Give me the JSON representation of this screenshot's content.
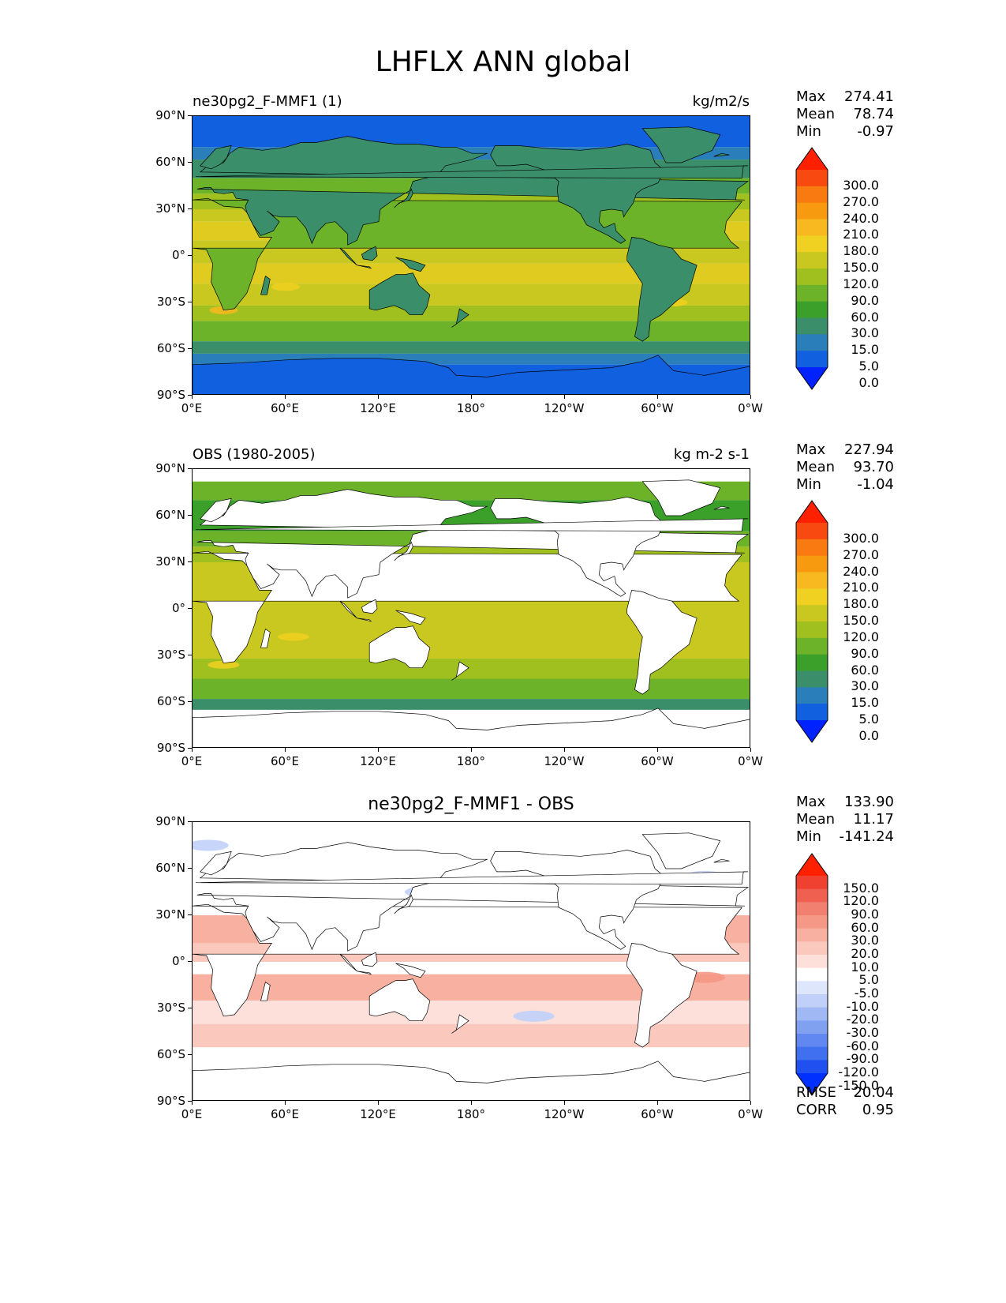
{
  "figure_title": "LHFLX ANN global",
  "panels": [
    {
      "title_left": "ne30pg2_F-MMF1 (1)",
      "title_right": "kg/m2/s",
      "title_center": "",
      "stats": {
        "max_label": "Max",
        "max": "274.41",
        "mean_label": "Mean",
        "mean": "78.74",
        "min_label": "Min",
        "min": "-0.97"
      },
      "colorbar_labels": [
        "300.0",
        "270.0",
        "240.0",
        "210.0",
        "180.0",
        "150.0",
        "120.0",
        "90.0",
        "60.0",
        "30.0",
        "15.0",
        "5.0",
        "0.0"
      ]
    },
    {
      "title_left": "OBS (1980-2005)",
      "title_right": "kg m-2 s-1",
      "title_center": "",
      "stats": {
        "max_label": "Max",
        "max": "227.94",
        "mean_label": "Mean",
        "mean": "93.70",
        "min_label": "Min",
        "min": "-1.04"
      },
      "colorbar_labels": [
        "300.0",
        "270.0",
        "240.0",
        "210.0",
        "180.0",
        "150.0",
        "120.0",
        "90.0",
        "60.0",
        "30.0",
        "15.0",
        "5.0",
        "0.0"
      ]
    },
    {
      "title_left": "",
      "title_right": "",
      "title_center": "ne30pg2_F-MMF1 - OBS",
      "stats": {
        "max_label": "Max",
        "max": "133.90",
        "mean_label": "Mean",
        "mean": "11.17",
        "min_label": "Min",
        "min": "-141.24"
      },
      "colorbar_labels": [
        "150.0",
        "120.0",
        "90.0",
        "60.0",
        "30.0",
        "20.0",
        "10.0",
        "5.0",
        "-5.0",
        "-10.0",
        "-20.0",
        "-30.0",
        "-60.0",
        "-90.0",
        "-120.0",
        "-150.0"
      ],
      "extra_stats": {
        "rmse_label": "RMSE",
        "rmse": "20.04",
        "corr_label": "CORR",
        "corr": "0.95"
      }
    }
  ],
  "axes": {
    "x_ticks": [
      "0°E",
      "60°E",
      "120°E",
      "180°",
      "120°W",
      "60°W",
      "0°W"
    ],
    "y_ticks": [
      "90°N",
      "60°N",
      "30°N",
      "0°",
      "30°S",
      "60°S",
      "90°S"
    ]
  },
  "chart_data": [
    {
      "type": "heatmap",
      "title": "ne30pg2_F-MMF1 (1)",
      "units": "kg/m2/s",
      "x_range": [
        0,
        360
      ],
      "y_range": [
        -90,
        90
      ],
      "levels": [
        0.0,
        5.0,
        15.0,
        30.0,
        60.0,
        90.0,
        120.0,
        150.0,
        180.0,
        210.0,
        240.0,
        270.0,
        300.0
      ],
      "max": 274.41,
      "mean": 78.74,
      "min": -0.97,
      "colors": [
        "#0022ff",
        "#1060e0",
        "#2a7fbb",
        "#3a8f6a",
        "#3aa02a",
        "#6db32a",
        "#a0c020",
        "#c8c820",
        "#f0d020",
        "#f8b820",
        "#f89a10",
        "#f87a10",
        "#f84a10",
        "#ff2000"
      ]
    },
    {
      "type": "heatmap",
      "title": "OBS (1980-2005)",
      "units": "kg m-2 s-1",
      "x_range": [
        0,
        360
      ],
      "y_range": [
        -90,
        90
      ],
      "levels": [
        0.0,
        5.0,
        15.0,
        30.0,
        60.0,
        90.0,
        120.0,
        150.0,
        180.0,
        210.0,
        240.0,
        270.0,
        300.0
      ],
      "max": 227.94,
      "mean": 93.7,
      "min": -1.04,
      "colors": [
        "#0022ff",
        "#1060e0",
        "#2a7fbb",
        "#3a8f6a",
        "#3aa02a",
        "#6db32a",
        "#a0c020",
        "#c8c820",
        "#f0d020",
        "#f8b820",
        "#f89a10",
        "#f87a10",
        "#f84a10",
        "#ff2000"
      ]
    },
    {
      "type": "heatmap",
      "title": "ne30pg2_F-MMF1 - OBS",
      "x_range": [
        0,
        360
      ],
      "y_range": [
        -90,
        90
      ],
      "levels": [
        -150.0,
        -120.0,
        -90.0,
        -60.0,
        -30.0,
        -20.0,
        -10.0,
        -5.0,
        5.0,
        10.0,
        20.0,
        30.0,
        60.0,
        90.0,
        120.0,
        150.0
      ],
      "max": 133.9,
      "mean": 11.17,
      "min": -141.24,
      "rmse": 20.04,
      "corr": 0.95,
      "colors": [
        "#0030ff",
        "#2050f0",
        "#4070f0",
        "#6088f0",
        "#80a0f0",
        "#a0b8f4",
        "#c0d0f8",
        "#dde6fb",
        "#ffffff",
        "#fde0da",
        "#fbc8bd",
        "#f8b0a0",
        "#f59885",
        "#f28070",
        "#f06050",
        "#f04030",
        "#ff2000"
      ]
    }
  ]
}
